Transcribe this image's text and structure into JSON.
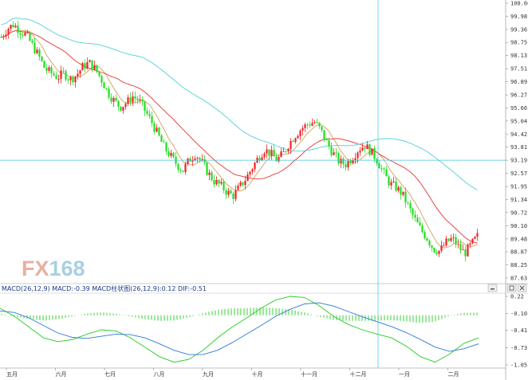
{
  "chart_data": [
    {
      "type": "candlestick",
      "y_ticks": [
        "100.60",
        "99.98",
        "99.36",
        "98.75",
        "98.13",
        "97.51",
        "96.89",
        "96.27",
        "95.66",
        "95.04",
        "94.42",
        "93.81",
        "93.19",
        "92.57",
        "91.95",
        "91.34",
        "90.72",
        "90.10",
        "89.48",
        "88.87",
        "88.25",
        "87.63"
      ],
      "ylim": [
        87.63,
        100.6
      ],
      "x_ticks": [
        "五月",
        "六月",
        "七月",
        "八月",
        "九月",
        "十月",
        "十一月",
        "十二月",
        "一月",
        "二月"
      ],
      "crosshair_value": 93.19,
      "close_path": [
        99.0,
        99.4,
        99.6,
        99.3,
        99.1,
        98.6,
        98.1,
        97.5,
        97.3,
        97.1,
        97.3,
        97.0,
        97.2,
        97.6,
        97.8,
        97.5,
        97.0,
        96.4,
        96.0,
        95.7,
        95.9,
        96.2,
        96.0,
        95.5,
        95.0,
        94.4,
        93.8,
        93.4,
        93.0,
        92.7,
        93.2,
        93.5,
        93.1,
        92.6,
        92.2,
        92.0,
        91.7,
        91.5,
        91.9,
        92.3,
        92.8,
        93.3,
        93.7,
        93.5,
        93.2,
        93.5,
        94.0,
        94.4,
        94.7,
        94.9,
        95.0,
        94.6,
        94.0,
        93.5,
        93.1,
        93.0,
        93.3,
        93.7,
        93.9,
        93.6,
        93.2,
        92.6,
        92.1,
        91.9,
        91.6,
        91.0,
        90.4,
        89.9,
        89.5,
        89.0,
        88.9,
        89.3,
        89.5,
        89.1,
        88.8,
        89.2,
        89.6
      ]
    },
    {
      "type": "line",
      "legend": "MACD(26,12,9) MACD:-0.39 MACD柱状图(26,12,9):0.12 DIF:-0.51",
      "y_ticks": [
        "0.22",
        "-0.10",
        "-0.41",
        "-0.73",
        "-1.05"
      ],
      "ylim": [
        -1.05,
        0.22
      ],
      "series": [
        {
          "name": "DIF",
          "color": "#22cc22",
          "values": [
            0.0,
            -0.15,
            -0.35,
            -0.55,
            -0.62,
            -0.58,
            -0.48,
            -0.4,
            -0.42,
            -0.55,
            -0.72,
            -0.9,
            -1.0,
            -0.95,
            -0.78,
            -0.55,
            -0.35,
            -0.18,
            0.0,
            0.15,
            0.22,
            0.2,
            0.05,
            -0.15,
            -0.3,
            -0.4,
            -0.48,
            -0.55,
            -0.7,
            -0.9,
            -1.0,
            -0.85,
            -0.65,
            -0.55
          ]
        },
        {
          "name": "MACD",
          "color": "#2a7ad8",
          "values": [
            -0.05,
            -0.08,
            -0.18,
            -0.32,
            -0.46,
            -0.54,
            -0.56,
            -0.52,
            -0.48,
            -0.49,
            -0.55,
            -0.66,
            -0.78,
            -0.86,
            -0.86,
            -0.78,
            -0.64,
            -0.48,
            -0.32,
            -0.15,
            -0.02,
            0.08,
            0.1,
            0.04,
            -0.06,
            -0.16,
            -0.25,
            -0.34,
            -0.45,
            -0.58,
            -0.72,
            -0.8,
            -0.75,
            -0.66
          ]
        }
      ]
    }
  ]
}
